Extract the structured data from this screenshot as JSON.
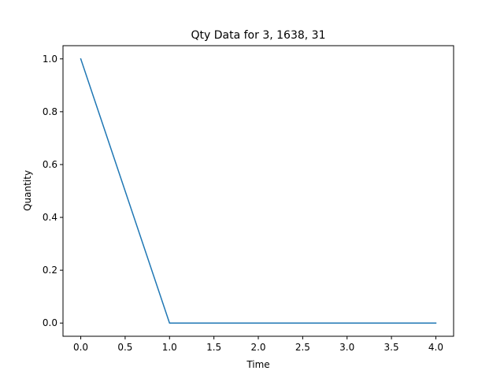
{
  "chart_data": {
    "type": "line",
    "title": "Qty Data for 3, 1638, 31",
    "xlabel": "Time",
    "ylabel": "Quantity",
    "xlim": [
      -0.2,
      4.2
    ],
    "ylim": [
      -0.05,
      1.05
    ],
    "xticks": [
      0.0,
      0.5,
      1.0,
      1.5,
      2.0,
      2.5,
      3.0,
      3.5,
      4.0
    ],
    "xtick_labels": [
      "0.0",
      "0.5",
      "1.0",
      "1.5",
      "2.0",
      "2.5",
      "3.0",
      "3.5",
      "4.0"
    ],
    "yticks": [
      0.0,
      0.2,
      0.4,
      0.6,
      0.8,
      1.0
    ],
    "ytick_labels": [
      "0.0",
      "0.2",
      "0.4",
      "0.6",
      "0.8",
      "1.0"
    ],
    "grid": false,
    "series": [
      {
        "color": "#1f77b4",
        "x": [
          0,
          1,
          2,
          3,
          4
        ],
        "y": [
          1,
          0,
          0,
          0,
          0
        ]
      }
    ]
  }
}
